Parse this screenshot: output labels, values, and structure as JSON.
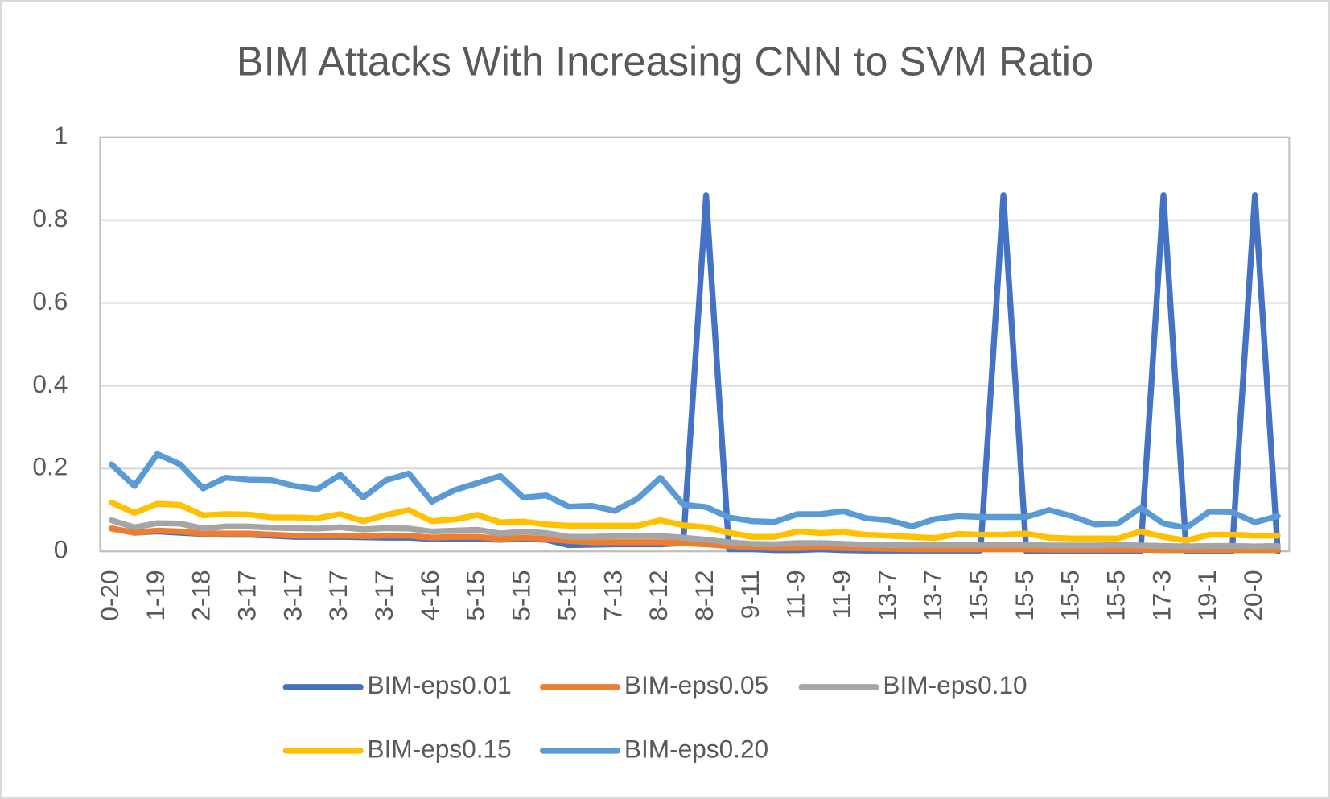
{
  "chart_data": {
    "type": "line",
    "title": "BIM Attacks With Increasing CNN to SVM Ratio",
    "categories": [
      "0-20",
      null,
      "1-19",
      null,
      "2-18",
      null,
      "3-17",
      null,
      "3-17",
      null,
      "3-17",
      null,
      "3-17",
      null,
      "4-16",
      null,
      "5-15",
      null,
      "5-15",
      null,
      "5-15",
      null,
      "7-13",
      null,
      "8-12",
      null,
      "8-12",
      null,
      "9-11",
      null,
      "11-9",
      null,
      "11-9",
      null,
      "13-7",
      null,
      "13-7",
      null,
      "15-5",
      null,
      "15-5",
      null,
      "15-5",
      null,
      "15-5",
      null,
      "17-3",
      null,
      "19-1",
      null,
      "20-0",
      null
    ],
    "series": [
      {
        "name": "BIM-eps0.01",
        "color": "#4472c4",
        "values": [
          0.055,
          0.045,
          0.048,
          0.045,
          0.042,
          0.04,
          0.04,
          0.038,
          0.035,
          0.035,
          0.035,
          0.034,
          0.033,
          0.033,
          0.03,
          0.03,
          0.03,
          0.028,
          0.03,
          0.028,
          0.015,
          0.016,
          0.017,
          0.017,
          0.017,
          0.02,
          0.86,
          0.005,
          0.005,
          0.003,
          0.003,
          0.005,
          0.003,
          0.002,
          0.002,
          0.002,
          0.002,
          0.002,
          0.002,
          0.86,
          0,
          0,
          0,
          0,
          0,
          0,
          0.86,
          0,
          0,
          0,
          0.86,
          0
        ]
      },
      {
        "name": "BIM-eps0.05",
        "color": "#ed7d31",
        "values": [
          0.055,
          0.045,
          0.05,
          0.048,
          0.043,
          0.043,
          0.043,
          0.04,
          0.038,
          0.038,
          0.038,
          0.037,
          0.038,
          0.038,
          0.033,
          0.035,
          0.035,
          0.03,
          0.033,
          0.03,
          0.025,
          0.022,
          0.022,
          0.022,
          0.022,
          0.02,
          0.017,
          0.013,
          0.01,
          0.008,
          0.008,
          0.01,
          0.008,
          0.007,
          0.006,
          0.005,
          0.005,
          0.005,
          0.005,
          0.005,
          0.005,
          0.004,
          0.004,
          0.004,
          0.004,
          0.004,
          0.003,
          0.003,
          0.003,
          0.003,
          0.003,
          0.003
        ]
      },
      {
        "name": "BIM-eps0.10",
        "color": "#a5a5a5",
        "values": [
          0.075,
          0.058,
          0.068,
          0.067,
          0.055,
          0.06,
          0.06,
          0.057,
          0.056,
          0.055,
          0.058,
          0.053,
          0.056,
          0.055,
          0.048,
          0.05,
          0.052,
          0.043,
          0.048,
          0.044,
          0.035,
          0.035,
          0.037,
          0.037,
          0.037,
          0.033,
          0.028,
          0.022,
          0.018,
          0.017,
          0.02,
          0.02,
          0.018,
          0.016,
          0.015,
          0.015,
          0.016,
          0.016,
          0.016,
          0.016,
          0.016,
          0.014,
          0.014,
          0.014,
          0.015,
          0.014,
          0.013,
          0.012,
          0.013,
          0.013,
          0.012,
          0.013
        ]
      },
      {
        "name": "BIM-eps0.15",
        "color": "#ffc000",
        "values": [
          0.118,
          0.093,
          0.115,
          0.112,
          0.087,
          0.09,
          0.089,
          0.082,
          0.082,
          0.08,
          0.09,
          0.073,
          0.088,
          0.1,
          0.073,
          0.077,
          0.088,
          0.07,
          0.072,
          0.065,
          0.062,
          0.062,
          0.062,
          0.062,
          0.075,
          0.063,
          0.058,
          0.045,
          0.035,
          0.035,
          0.048,
          0.044,
          0.047,
          0.04,
          0.038,
          0.035,
          0.032,
          0.042,
          0.04,
          0.04,
          0.043,
          0.033,
          0.031,
          0.031,
          0.031,
          0.048,
          0.035,
          0.026,
          0.04,
          0.04,
          0.038,
          0.038
        ]
      },
      {
        "name": "BIM-eps0.20",
        "color": "#5b9bd5",
        "values": [
          0.21,
          0.158,
          0.235,
          0.21,
          0.152,
          0.178,
          0.173,
          0.172,
          0.158,
          0.15,
          0.185,
          0.13,
          0.172,
          0.188,
          0.12,
          0.148,
          0.165,
          0.182,
          0.13,
          0.135,
          0.108,
          0.11,
          0.098,
          0.127,
          0.178,
          0.113,
          0.107,
          0.082,
          0.073,
          0.071,
          0.09,
          0.09,
          0.097,
          0.08,
          0.075,
          0.06,
          0.078,
          0.085,
          0.083,
          0.083,
          0.083,
          0.1,
          0.085,
          0.065,
          0.067,
          0.105,
          0.067,
          0.057,
          0.096,
          0.095,
          0.07,
          0.085
        ]
      }
    ],
    "ylim": [
      0,
      1
    ],
    "yticks": [
      0,
      0.2,
      0.4,
      0.6,
      0.8,
      1
    ],
    "grid": true,
    "legend": "bottom"
  }
}
